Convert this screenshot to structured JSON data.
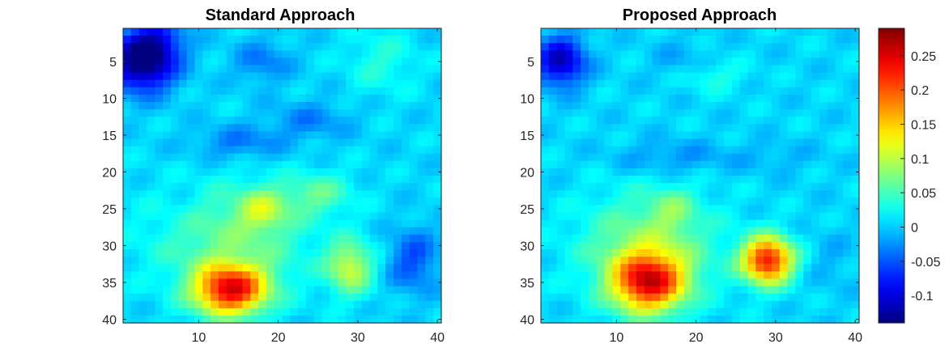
{
  "chart_data": [
    {
      "type": "heatmap",
      "title": "Standard Approach",
      "grid_size": [
        40,
        40
      ],
      "xlim": [
        0.5,
        40.5
      ],
      "ylim": [
        0.5,
        40.5
      ],
      "y_reversed": true,
      "xticks": [
        10,
        20,
        30,
        40
      ],
      "yticks": [
        5,
        10,
        15,
        20,
        25,
        30,
        35,
        40
      ],
      "colormap": "jet",
      "clim": [
        -0.14,
        0.29
      ],
      "features": [
        {
          "cx": 3,
          "cy": 5,
          "sx": 2.8,
          "sy": 2.8,
          "value": -0.16
        },
        {
          "cx": 5,
          "cy": 2,
          "sx": 2.5,
          "sy": 2.0,
          "value": -0.05
        },
        {
          "cx": 18,
          "cy": 5,
          "sx": 2.5,
          "sy": 2.0,
          "value": -0.04
        },
        {
          "cx": 15,
          "cy": 16,
          "sx": 4.0,
          "sy": 1.6,
          "value": -0.04
        },
        {
          "cx": 24,
          "cy": 13,
          "sx": 3.5,
          "sy": 1.8,
          "value": -0.035
        },
        {
          "cx": 33,
          "cy": 5,
          "sx": 3.0,
          "sy": 3.0,
          "value": 0.03
        },
        {
          "cx": 14,
          "cy": 29,
          "sx": 7.0,
          "sy": 5.0,
          "value": 0.06
        },
        {
          "cx": 14,
          "cy": 36,
          "sx": 3.2,
          "sy": 2.4,
          "value": 0.23
        },
        {
          "cx": 18,
          "cy": 25,
          "sx": 2.2,
          "sy": 2.0,
          "value": 0.07
        },
        {
          "cx": 25,
          "cy": 23,
          "sx": 3.0,
          "sy": 2.0,
          "value": 0.05
        },
        {
          "cx": 29,
          "cy": 33,
          "sx": 2.0,
          "sy": 2.5,
          "value": 0.1
        },
        {
          "cx": 37,
          "cy": 32,
          "sx": 2.2,
          "sy": 3.0,
          "value": -0.06
        },
        {
          "cx": 8,
          "cy": 25,
          "sx": 2.0,
          "sy": 3.0,
          "value": -0.01
        }
      ]
    },
    {
      "type": "heatmap",
      "title": "Proposed Approach",
      "grid_size": [
        40,
        40
      ],
      "xlim": [
        0.5,
        40.5
      ],
      "ylim": [
        0.5,
        40.5
      ],
      "y_reversed": true,
      "xticks": [
        10,
        20,
        30,
        40
      ],
      "yticks": [
        5,
        10,
        15,
        20,
        25,
        30,
        35,
        40
      ],
      "colormap": "jet",
      "clim": [
        -0.14,
        0.29
      ],
      "features": [
        {
          "cx": 3,
          "cy": 5,
          "sx": 2.2,
          "sy": 2.4,
          "value": -0.12
        },
        {
          "cx": 18,
          "cy": 5,
          "sx": 2.5,
          "sy": 2.0,
          "value": -0.02
        },
        {
          "cx": 22,
          "cy": 7,
          "sx": 3.0,
          "sy": 1.5,
          "value": 0.03
        },
        {
          "cx": 17,
          "cy": 18,
          "sx": 5.0,
          "sy": 1.6,
          "value": -0.03
        },
        {
          "cx": 30,
          "cy": 18,
          "sx": 4.0,
          "sy": 1.5,
          "value": -0.015
        },
        {
          "cx": 14,
          "cy": 30,
          "sx": 6.0,
          "sy": 5.0,
          "value": 0.07
        },
        {
          "cx": 14,
          "cy": 35,
          "sx": 3.2,
          "sy": 2.8,
          "value": 0.22
        },
        {
          "cx": 17,
          "cy": 25,
          "sx": 2.0,
          "sy": 2.0,
          "value": 0.04
        },
        {
          "cx": 29,
          "cy": 32,
          "sx": 2.2,
          "sy": 2.2,
          "value": 0.23
        },
        {
          "cx": 37,
          "cy": 32,
          "sx": 2.0,
          "sy": 3.0,
          "value": -0.015
        }
      ]
    }
  ],
  "colorbar": {
    "ticks": [
      -0.1,
      -0.05,
      0,
      0.05,
      0.1,
      0.15,
      0.2,
      0.25
    ],
    "labels": [
      "-0.1",
      "-0.05",
      "0",
      "0.05",
      "0.1",
      "0.15",
      "0.2",
      "0.25"
    ],
    "range": [
      -0.14,
      0.29
    ]
  }
}
